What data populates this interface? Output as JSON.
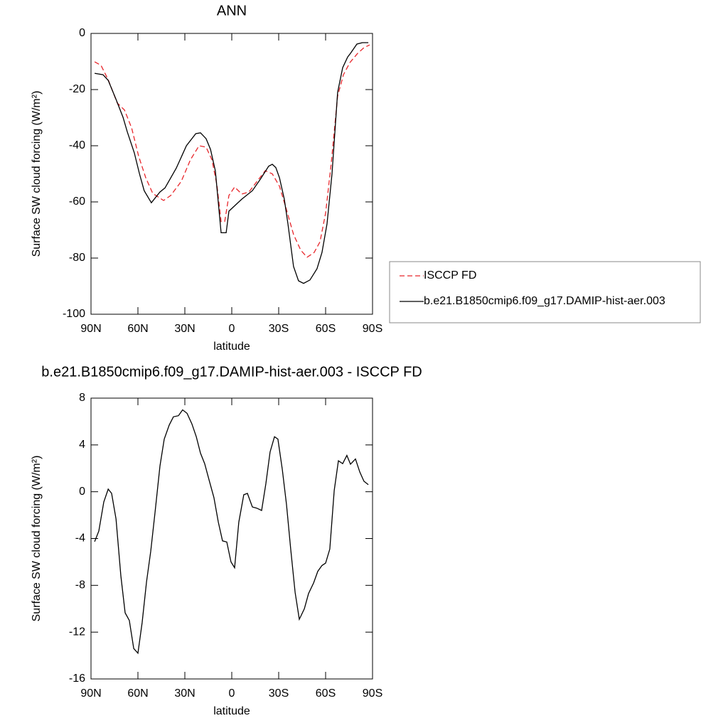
{
  "chart_data": [
    {
      "type": "line",
      "title": "ANN",
      "x_label": "latitude",
      "y_label": "Surface SW cloud forcing (W/m²)",
      "xlim": [
        90,
        -90
      ],
      "xticks": [
        {
          "value": 90,
          "label": "90N"
        },
        {
          "value": 60,
          "label": "60N"
        },
        {
          "value": 30,
          "label": "30N"
        },
        0,
        {
          "value": -30,
          "label": "30S"
        },
        {
          "value": -60,
          "label": "60S"
        },
        {
          "value": -90,
          "label": "90S"
        }
      ],
      "ylim": [
        -100,
        0
      ],
      "yticks": [
        0,
        -20,
        -40,
        -60,
        -80,
        -100
      ],
      "series": [
        {
          "name": "ISCCP FD",
          "color": "#e8262b",
          "line_style": "dashed",
          "x": [
            87.7,
            83.6,
            79,
            73.2,
            68.6,
            64,
            59.5,
            55,
            50.5,
            43.6,
            39,
            32.3,
            26.4,
            20.9,
            16.4,
            12.7,
            9.5,
            6.8,
            4.5,
            1.8,
            -1.8,
            -6.4,
            -10.9,
            -16.8,
            -21.4,
            -25.9,
            -30.5,
            -35,
            -39.5,
            -44.1,
            -48.2,
            -52.7,
            -56.4,
            -60,
            -63.6,
            -67.7,
            -71.4,
            -75.5,
            -80.5,
            -84.5,
            -88.2
          ],
          "values": [
            -10.1,
            -11.4,
            -16.5,
            -24.8,
            -27.3,
            -33.7,
            -43.8,
            -51.4,
            -57,
            -59.5,
            -57.7,
            -52.7,
            -45,
            -40,
            -40.5,
            -45,
            -53.9,
            -67,
            -67,
            -57.7,
            -54.7,
            -57.2,
            -56.5,
            -52.2,
            -48.9,
            -50,
            -54.4,
            -62.8,
            -71.6,
            -77.2,
            -79.7,
            -78,
            -74.2,
            -64,
            -46.3,
            -22.3,
            -14.7,
            -10.4,
            -7.1,
            -5.1,
            -4.1
          ]
        },
        {
          "name": "b.e21.B1850cmip6.f09_g17.DAMIP-hist-aer.003",
          "color": "#000000",
          "line_style": "solid",
          "x": [
            87.7,
            82.3,
            79,
            74,
            69.5,
            66.8,
            62.3,
            59,
            56,
            51.4,
            46,
            42.7,
            35.5,
            29,
            23,
            20,
            16.4,
            13.6,
            10.5,
            6.8,
            3.6,
            1.8,
            -6.4,
            -13.2,
            -18.2,
            -23.6,
            -25.9,
            -28.2,
            -30.5,
            -33.6,
            -35.9,
            -39.5,
            -42.7,
            -45.9,
            -50,
            -54.5,
            -57.7,
            -60.9,
            -64.1,
            -67.7,
            -70.9,
            -74.1,
            -75.9,
            -80,
            -83.6,
            -87.3
          ],
          "values": [
            -14.2,
            -14.7,
            -16.7,
            -23.5,
            -29.9,
            -35,
            -42.5,
            -50,
            -56,
            -60.3,
            -56.5,
            -55,
            -48,
            -40,
            -35.7,
            -35.4,
            -37.5,
            -41.3,
            -48.9,
            -71,
            -71,
            -63.3,
            -59,
            -56,
            -52,
            -47.3,
            -46.6,
            -47.8,
            -51.4,
            -59,
            -67.8,
            -83,
            -88.1,
            -89,
            -87.8,
            -83.8,
            -78,
            -67.8,
            -50,
            -21,
            -12.2,
            -8.4,
            -7.1,
            -3.8,
            -3.3,
            -3.3
          ]
        }
      ]
    },
    {
      "type": "line",
      "title": "b.e21.B1850cmip6.f09_g17.DAMIP-hist-aer.003 - ISCCP FD",
      "x_label": "latitude",
      "y_label": "Surface SW cloud forcing (W/m²)",
      "xlim": [
        90,
        -90
      ],
      "xticks": [
        {
          "value": 90,
          "label": "90N"
        },
        {
          "value": 60,
          "label": "60N"
        },
        {
          "value": 30,
          "label": "30N"
        },
        0,
        {
          "value": -30,
          "label": "30S"
        },
        {
          "value": -60,
          "label": "60S"
        },
        {
          "value": -90,
          "label": "90S"
        }
      ],
      "ylim": [
        -16,
        8
      ],
      "yticks": [
        8,
        4,
        0,
        -4,
        -8,
        -12,
        -16
      ],
      "series": [
        {
          "color": "#000000",
          "line_style": "solid",
          "x": [
            87.7,
            85,
            81.8,
            79,
            76.8,
            74,
            70.9,
            68.2,
            65.5,
            62.7,
            60,
            57.3,
            54.5,
            51.8,
            49,
            45.9,
            43.2,
            40,
            37.3,
            34.1,
            31.4,
            28.6,
            25.5,
            22.7,
            20,
            17.3,
            14.5,
            11.4,
            8.6,
            5.9,
            3.2,
            0.5,
            -1.8,
            -4.5,
            -7.7,
            -10,
            -13.2,
            -15.9,
            -19.1,
            -21.8,
            -24.5,
            -27.3,
            -29.5,
            -32.3,
            -35,
            -37.7,
            -40.5,
            -43.2,
            -46.4,
            -49.1,
            -52.3,
            -55,
            -57.7,
            -60,
            -62.7,
            -65.5,
            -68.2,
            -70.9,
            -73.6,
            -75.9,
            -79.1,
            -81.8,
            -84.5,
            -87.3
          ],
          "values": [
            -4.27,
            -3.36,
            -0.87,
            0.22,
            -0.14,
            -2.33,
            -7.19,
            -10.35,
            -11,
            -13.4,
            -13.8,
            -11.2,
            -7.7,
            -5.1,
            -1.7,
            2.2,
            4.5,
            5.7,
            6.4,
            6.5,
            7,
            6.7,
            5.8,
            4.7,
            3.3,
            2.4,
            1,
            -0.5,
            -2.6,
            -4.2,
            -4.3,
            -6,
            -6.5,
            -2.6,
            -0.26,
            -0.14,
            -1.3,
            -1.4,
            -1.6,
            0.7,
            3.4,
            4.7,
            4.5,
            1.9,
            -1.1,
            -4.9,
            -8.6,
            -10.9,
            -10,
            -8.7,
            -7.8,
            -6.8,
            -6.3,
            -6.1,
            -4.9,
            0.1,
            2.65,
            2.4,
            3.1,
            2.35,
            2.8,
            1.7,
            0.9,
            0.6
          ]
        }
      ]
    }
  ]
}
